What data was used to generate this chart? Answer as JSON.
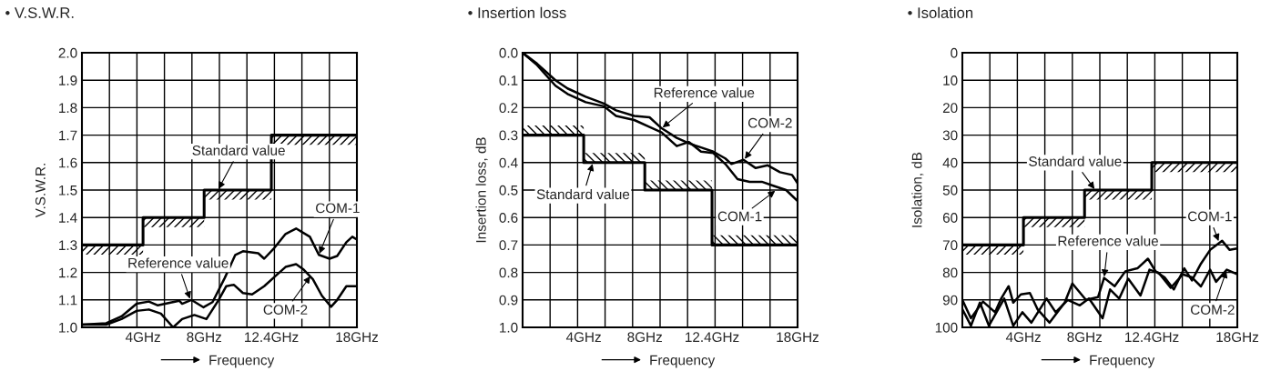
{
  "chart_data": [
    {
      "type": "line",
      "title": "• V.S.W.R.",
      "xlabel": "Frequency",
      "ylabel": "V.S.W.R.",
      "xlim": [
        0,
        18
      ],
      "ylim": [
        1.0,
        2.0
      ],
      "xticks": [
        {
          "value": 1.8,
          "label": null
        },
        {
          "value": 3.6,
          "label": null
        },
        {
          "value": 4,
          "label": "4GHz"
        },
        {
          "value": 5.4,
          "label": null
        },
        {
          "value": 7.2,
          "label": null
        },
        {
          "value": 8,
          "label": "8GHz"
        },
        {
          "value": 9,
          "label": null
        },
        {
          "value": 10.8,
          "label": null
        },
        {
          "value": 12.4,
          "label": "12.4GHz"
        },
        {
          "value": 12.6,
          "label": null
        },
        {
          "value": 14.4,
          "label": null
        },
        {
          "value": 16.2,
          "label": null
        },
        {
          "value": 18,
          "label": "18GHz"
        }
      ],
      "yticks": [
        {
          "value": 1.0,
          "label": "1.0"
        },
        {
          "value": 1.1,
          "label": "1.1"
        },
        {
          "value": 1.2,
          "label": "1.2"
        },
        {
          "value": 1.3,
          "label": "1.3"
        },
        {
          "value": 1.4,
          "label": "1.4"
        },
        {
          "value": 1.5,
          "label": "1.5"
        },
        {
          "value": 1.6,
          "label": "1.6"
        },
        {
          "value": 1.7,
          "label": "1.7"
        },
        {
          "value": 1.8,
          "label": "1.8"
        },
        {
          "value": 1.9,
          "label": "1.9"
        },
        {
          "value": 2.0,
          "label": "2.0"
        }
      ],
      "grid": true,
      "series": [
        {
          "type": "step",
          "color": "#000000",
          "x": [
            0,
            4,
            8,
            12.4,
            18
          ],
          "values": [
            1.3,
            1.4,
            1.5,
            1.7,
            1.7
          ]
        },
        {
          "color": "#000000",
          "x": [
            0,
            1.59,
            2.59,
            3.58,
            4.38,
            4.97,
            6.37,
            6.56,
            7.16,
            7.96,
            8.55,
            9.35,
            10.04,
            10.54,
            11.54,
            11.93,
            12.53,
            13.33,
            14.02,
            14.92,
            15.51,
            16.21,
            16.71,
            17.31,
            17.7,
            18
          ],
          "values": [
            1.01,
            1.015,
            1.04,
            1.086,
            1.094,
            1.08,
            1.097,
            1.086,
            1.1,
            1.073,
            1.092,
            1.18,
            1.264,
            1.277,
            1.27,
            1.25,
            1.285,
            1.34,
            1.36,
            1.33,
            1.264,
            1.25,
            1.26,
            1.31,
            1.33,
            1.32
          ]
        },
        {
          "color": "#000000",
          "x": [
            0,
            1.59,
            2.59,
            3.58,
            4.38,
            5.17,
            5.97,
            6.56,
            7.36,
            8.15,
            8.95,
            9.45,
            9.94,
            10.54,
            11.14,
            11.93,
            12.73,
            13.33,
            14.02,
            14.52,
            15.12,
            15.71,
            16.31,
            16.71,
            17.31,
            18
          ],
          "values": [
            1.01,
            1.01,
            1.03,
            1.06,
            1.065,
            1.05,
            1.0,
            1.03,
            1.045,
            1.03,
            1.1,
            1.15,
            1.155,
            1.125,
            1.12,
            1.15,
            1.19,
            1.22,
            1.23,
            1.21,
            1.175,
            1.115,
            1.075,
            1.1,
            1.15,
            1.15
          ]
        }
      ],
      "annotations": [
        {
          "text": "Standard value",
          "x": 8.9,
          "y": 1.5
        },
        {
          "text": "Reference value",
          "x": 7.1,
          "y": 1.1
        },
        {
          "text": "COM-1",
          "x": 15.51,
          "y": 1.264
        },
        {
          "text": "COM-2",
          "x": 15.0,
          "y": 1.19
        }
      ]
    },
    {
      "type": "line",
      "title": "• Insertion loss",
      "xlabel": "Frequency",
      "ylabel": "Insertion loss, dB",
      "xlim": [
        0,
        18
      ],
      "ylim": [
        1.0,
        0.0
      ],
      "xticks": [
        {
          "value": 1.8,
          "label": null
        },
        {
          "value": 3.6,
          "label": null
        },
        {
          "value": 4,
          "label": "4GHz"
        },
        {
          "value": 5.4,
          "label": null
        },
        {
          "value": 7.2,
          "label": null
        },
        {
          "value": 8,
          "label": "8GHz"
        },
        {
          "value": 9,
          "label": null
        },
        {
          "value": 10.8,
          "label": null
        },
        {
          "value": 12.4,
          "label": "12.4GHz"
        },
        {
          "value": 12.6,
          "label": null
        },
        {
          "value": 14.4,
          "label": null
        },
        {
          "value": 16.2,
          "label": null
        },
        {
          "value": 18,
          "label": "18GHz"
        }
      ],
      "yticks": [
        {
          "value": 0.0,
          "label": "0.0"
        },
        {
          "value": 0.1,
          "label": "0.1"
        },
        {
          "value": 0.2,
          "label": "0.2"
        },
        {
          "value": 0.3,
          "label": "0.3"
        },
        {
          "value": 0.4,
          "label": "0.4"
        },
        {
          "value": 0.5,
          "label": "0.5"
        },
        {
          "value": 0.6,
          "label": "0.6"
        },
        {
          "value": 0.7,
          "label": "0.7"
        },
        {
          "value": 0.8,
          "label": "0.8"
        },
        {
          "value": 0.9,
          "label": "0.9"
        },
        {
          "value": 1.0,
          "label": "1.0"
        }
      ],
      "grid": true,
      "series": [
        {
          "type": "step",
          "color": "#000000",
          "x": [
            0,
            4,
            8,
            12.4,
            18
          ],
          "values": [
            0.3,
            0.4,
            0.5,
            0.7,
            0.7
          ]
        },
        {
          "color": "#000000",
          "x": [
            0,
            0.95,
            2.15,
            2.94,
            4.13,
            5.32,
            6.12,
            7.31,
            8.31,
            9.1,
            10.09,
            10.89,
            11.68,
            12.48,
            13.27,
            14.07,
            14.86,
            15.66,
            16.45,
            17.25,
            18
          ],
          "values": [
            0,
            0.045,
            0.12,
            0.15,
            0.18,
            0.195,
            0.23,
            0.245,
            0.27,
            0.29,
            0.34,
            0.325,
            0.36,
            0.365,
            0.405,
            0.46,
            0.47,
            0.47,
            0.485,
            0.5,
            0.54
          ]
        },
        {
          "color": "#000000",
          "x": [
            0,
            0.95,
            2.15,
            2.94,
            4.13,
            5.32,
            6.12,
            7.31,
            8.31,
            9.1,
            10.09,
            10.89,
            11.68,
            12.48,
            13.27,
            13.67,
            14.46,
            15.26,
            16.05,
            16.85,
            17.64,
            18
          ],
          "values": [
            0,
            0.04,
            0.1,
            0.13,
            0.16,
            0.185,
            0.21,
            0.23,
            0.235,
            0.275,
            0.31,
            0.33,
            0.345,
            0.36,
            0.385,
            0.405,
            0.39,
            0.42,
            0.41,
            0.435,
            0.445,
            0.475
          ]
        }
      ],
      "annotations": [
        {
          "text": "Standard value",
          "x": 4.6,
          "y": 0.4
        },
        {
          "text": "Reference value",
          "x": 9.1,
          "y": 0.275
        },
        {
          "text": "COM-1",
          "x": 16.6,
          "y": 0.5
        },
        {
          "text": "COM-2",
          "x": 14.5,
          "y": 0.39
        }
      ]
    },
    {
      "type": "line",
      "title": "• Isolation",
      "xlabel": "Frequency",
      "ylabel": "Isolation, dB",
      "xlim": [
        0,
        18
      ],
      "ylim": [
        100,
        0
      ],
      "xticks": [
        {
          "value": 1.8,
          "label": null
        },
        {
          "value": 3.6,
          "label": null
        },
        {
          "value": 4,
          "label": "4GHz"
        },
        {
          "value": 5.4,
          "label": null
        },
        {
          "value": 7.2,
          "label": null
        },
        {
          "value": 8,
          "label": "8GHz"
        },
        {
          "value": 9,
          "label": null
        },
        {
          "value": 10.8,
          "label": null
        },
        {
          "value": 12.4,
          "label": "12.4GHz"
        },
        {
          "value": 12.6,
          "label": null
        },
        {
          "value": 14.4,
          "label": null
        },
        {
          "value": 16.2,
          "label": null
        },
        {
          "value": 18,
          "label": "18GHz"
        }
      ],
      "yticks": [
        0,
        10,
        20,
        30,
        40,
        50,
        60,
        70,
        80,
        90,
        100
      ],
      "grid": true,
      "series": [
        {
          "type": "step",
          "color": "#000000",
          "x": [
            0,
            4,
            8,
            12.4,
            18
          ],
          "values": [
            70,
            60,
            50,
            40,
            40
          ]
        },
        {
          "color": "#000000",
          "x": [
            0,
            0.56,
            1.35,
            2.14,
            2.54,
            3.03,
            3.33,
            3.83,
            4.42,
            4.92,
            5.71,
            6.7,
            7.2,
            8.09,
            8.88,
            9.28,
            9.97,
            10.67,
            11.46,
            12.15,
            12.65,
            13.24,
            13.84,
            14.53,
            15.03,
            15.62,
            16.22,
            17.01,
            17.5,
            18
          ],
          "values": [
            90,
            96.7,
            90.6,
            94.5,
            89.5,
            85,
            91,
            88,
            87.5,
            93.4,
            98.3,
            91,
            84,
            90,
            89,
            82,
            85,
            79.6,
            78.5,
            75,
            79.6,
            81.8,
            86.2,
            78.5,
            82.9,
            76.8,
            71.8,
            68.5,
            71.8,
            71.3
          ]
        },
        {
          "color": "#000000",
          "x": [
            0,
            0.56,
            1.15,
            1.74,
            2.74,
            3.33,
            3.93,
            4.52,
            5.51,
            6.11,
            6.9,
            7.69,
            8.29,
            9.18,
            9.67,
            10.27,
            10.86,
            11.66,
            12.25,
            12.85,
            13.64,
            14.43,
            15.03,
            15.62,
            16.22,
            16.61,
            17.31,
            18
          ],
          "values": [
            93.4,
            99.4,
            91,
            99.4,
            89.5,
            99.4,
            94.5,
            98.3,
            89.5,
            94.5,
            90,
            92,
            89.5,
            96.7,
            86.2,
            89.5,
            82.3,
            88.4,
            79,
            80.1,
            85.6,
            80.7,
            81.8,
            85.1,
            79,
            83.4,
            79,
            80.7
          ]
        }
      ],
      "annotations": [
        {
          "text": "Standard value",
          "x": 8.7,
          "y": 50
        },
        {
          "text": "Reference value",
          "x": 9.28,
          "y": 82
        },
        {
          "text": "COM-1",
          "x": 16.8,
          "y": 69
        },
        {
          "text": "COM-2",
          "x": 17.31,
          "y": 79
        }
      ]
    }
  ]
}
